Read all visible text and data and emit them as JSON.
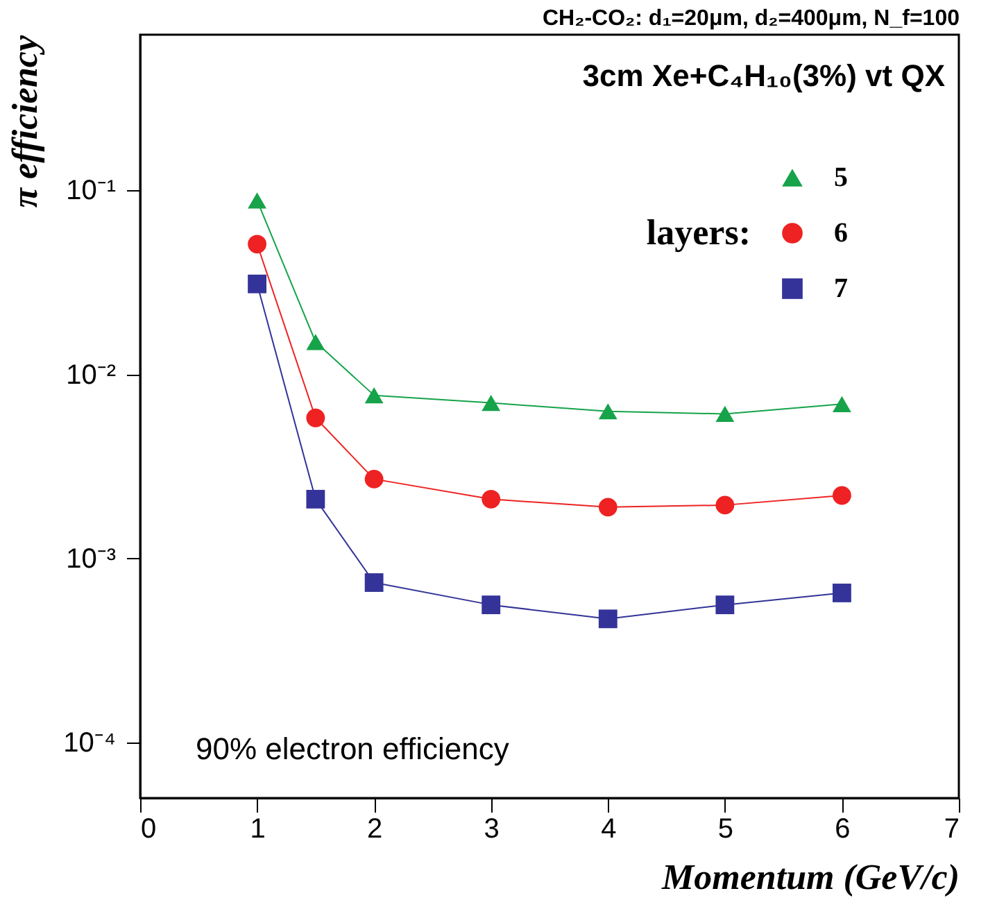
{
  "chart_data": {
    "type": "line",
    "title": "CH₂-CO₂: d₁=20μm, d₂=400μm, N_f=100",
    "xlabel": "Momentum (GeV/c)",
    "ylabel": "π efficiency",
    "legend_title": "layers:",
    "annotations": [
      "3cm Xe+C₄H₁₀(3%) vt QX",
      "90% electron efficiency"
    ],
    "x": [
      1,
      1.5,
      2,
      3,
      4,
      5,
      6
    ],
    "series": [
      {
        "name": "5",
        "color": "#16a34a",
        "marker": "triangle",
        "values": [
          0.088,
          0.015,
          0.0077,
          0.007,
          0.0063,
          0.0061,
          0.0069
        ]
      },
      {
        "name": "6",
        "color": "#ee2222",
        "marker": "circle",
        "values": [
          0.051,
          0.0058,
          0.0027,
          0.0021,
          0.0019,
          0.00195,
          0.0022
        ]
      },
      {
        "name": "7",
        "color": "#333399",
        "marker": "square",
        "values": [
          0.031,
          0.0021,
          0.00074,
          0.00056,
          0.00047,
          0.00056,
          0.00065
        ]
      }
    ],
    "log": "y",
    "xlim": [
      0,
      7
    ],
    "xticks": [
      0,
      1,
      2,
      3,
      4,
      5,
      6,
      7
    ],
    "ylim": [
      5e-05,
      0.7
    ],
    "yticks": [
      {
        "value": 0.1,
        "label": "10⁻¹"
      },
      {
        "value": 0.01,
        "label": "10⁻²"
      },
      {
        "value": 0.001,
        "label": "10⁻³"
      },
      {
        "value": 0.0001,
        "label": "10⁻⁴"
      }
    ],
    "grid": false,
    "legend": "top right",
    "line_style": "solid"
  }
}
